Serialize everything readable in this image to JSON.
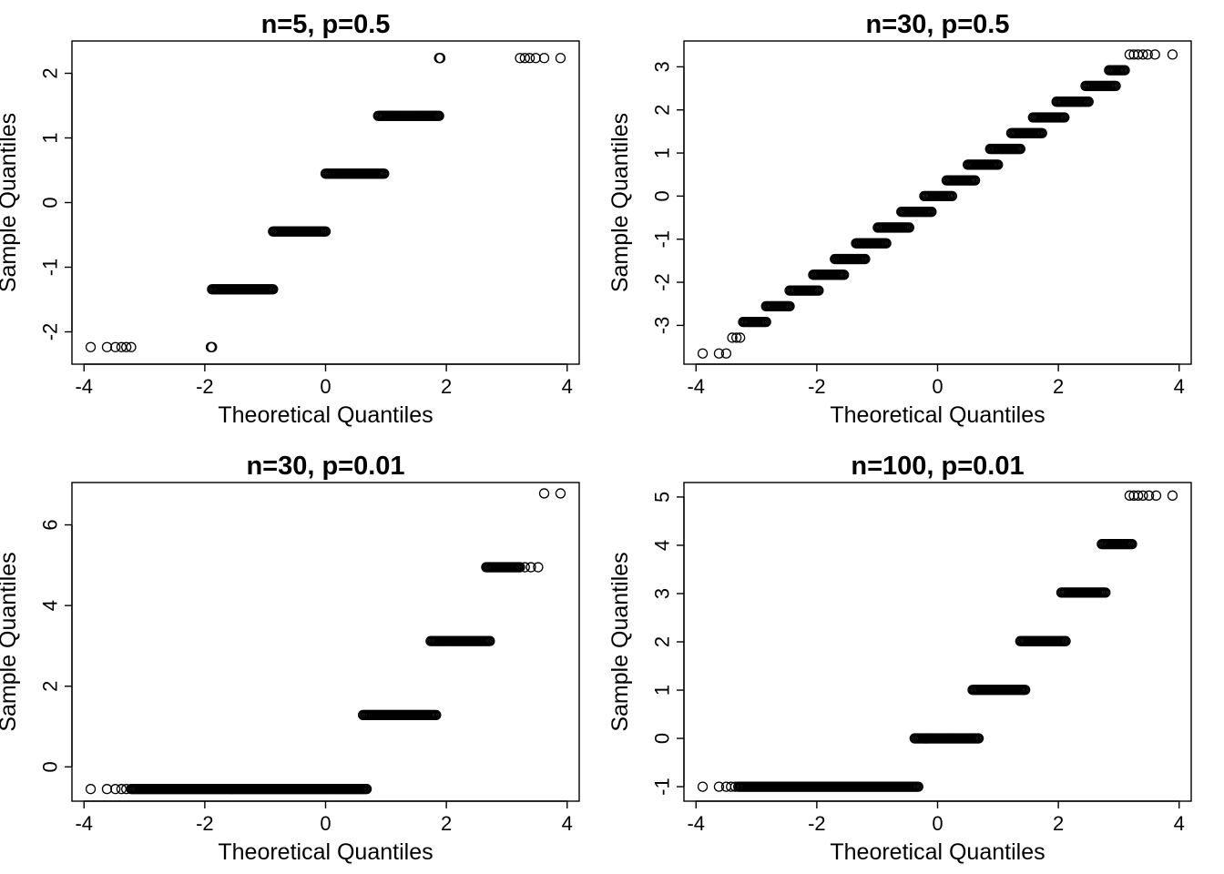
{
  "chart_data": [
    {
      "type": "scatter",
      "title": "n=5, p=0.5",
      "xlabel": "Theoretical Quantiles",
      "ylabel": "Sample Quantiles",
      "xlim": [
        -4.2,
        4.2
      ],
      "ylim": [
        -2.5,
        2.5
      ],
      "xticks": [
        -4,
        -2,
        0,
        2,
        4
      ],
      "yticks": [
        -2,
        -1,
        0,
        1,
        2
      ],
      "grid": false,
      "levels": [
        {
          "y": -2.236,
          "x_from": -1.88,
          "x_to": -1.9
        },
        {
          "y": -1.342,
          "x_from": -1.88,
          "x_to": -0.87
        },
        {
          "y": -0.447,
          "x_from": -0.87,
          "x_to": 0.0
        },
        {
          "y": 0.447,
          "x_from": 0.0,
          "x_to": 0.97
        },
        {
          "y": 1.342,
          "x_from": 0.87,
          "x_to": 1.88
        },
        {
          "y": 2.236,
          "x_from": 1.88,
          "x_to": 1.9
        }
      ],
      "tails": {
        "low_y": -2.236,
        "low_x": [
          -3.89,
          -3.62,
          -3.48,
          -3.38,
          -3.3,
          -3.22
        ],
        "high_y": 2.236,
        "high_x": [
          3.22,
          3.3,
          3.38,
          3.48,
          3.62,
          3.89
        ]
      }
    },
    {
      "type": "scatter",
      "title": "n=30, p=0.5",
      "xlabel": "Theoretical Quantiles",
      "ylabel": "Sample Quantiles",
      "xlim": [
        -4.2,
        4.2
      ],
      "ylim": [
        -3.9,
        3.6
      ],
      "xticks": [
        -4,
        -2,
        0,
        2,
        4
      ],
      "yticks": [
        -3,
        -2,
        -1,
        0,
        1,
        2,
        3
      ],
      "grid": false,
      "levels": [
        {
          "y": -2.921,
          "x_from": -3.22,
          "x_to": -2.84
        },
        {
          "y": -2.556,
          "x_from": -2.84,
          "x_to": -2.45
        },
        {
          "y": -2.191,
          "x_from": -2.45,
          "x_to": -1.97
        },
        {
          "y": -1.826,
          "x_from": -2.06,
          "x_to": -1.55
        },
        {
          "y": -1.461,
          "x_from": -1.7,
          "x_to": -1.2
        },
        {
          "y": -1.095,
          "x_from": -1.35,
          "x_to": -0.85
        },
        {
          "y": -0.73,
          "x_from": -0.99,
          "x_to": -0.47
        },
        {
          "y": -0.365,
          "x_from": -0.6,
          "x_to": -0.1
        },
        {
          "y": 0.0,
          "x_from": -0.22,
          "x_to": 0.24
        },
        {
          "y": 0.365,
          "x_from": 0.15,
          "x_to": 0.62
        },
        {
          "y": 0.73,
          "x_from": 0.5,
          "x_to": 1.0
        },
        {
          "y": 1.095,
          "x_from": 0.87,
          "x_to": 1.37
        },
        {
          "y": 1.461,
          "x_from": 1.22,
          "x_to": 1.73
        },
        {
          "y": 1.826,
          "x_from": 1.58,
          "x_to": 2.1
        },
        {
          "y": 2.191,
          "x_from": 1.97,
          "x_to": 2.5
        },
        {
          "y": 2.556,
          "x_from": 2.45,
          "x_to": 2.95
        },
        {
          "y": 2.921,
          "x_from": 2.84,
          "x_to": 3.1
        }
      ],
      "tails": {
        "low_points": [
          [
            -3.89,
            -3.651
          ],
          [
            -3.62,
            -3.651
          ],
          [
            -3.5,
            -3.651
          ],
          [
            -3.4,
            -3.286
          ],
          [
            -3.33,
            -3.286
          ],
          [
            -3.27,
            -3.286
          ]
        ],
        "high_points": [
          [
            3.18,
            3.286
          ],
          [
            3.25,
            3.286
          ],
          [
            3.32,
            3.286
          ],
          [
            3.4,
            3.286
          ],
          [
            3.48,
            3.286
          ],
          [
            3.6,
            3.286
          ],
          [
            3.89,
            3.286
          ]
        ]
      }
    },
    {
      "type": "scatter",
      "title": "n=30, p=0.01",
      "xlabel": "Theoretical Quantiles",
      "ylabel": "Sample Quantiles",
      "xlim": [
        -4.2,
        4.2
      ],
      "ylim": [
        -0.85,
        7.05
      ],
      "xticks": [
        -4,
        -2,
        0,
        2,
        4
      ],
      "yticks": [
        0,
        2,
        4,
        6
      ],
      "grid": false,
      "levels": [
        {
          "y": -0.549,
          "x_from": -3.22,
          "x_to": 0.68
        },
        {
          "y": 1.285,
          "x_from": 0.62,
          "x_to": 1.83
        },
        {
          "y": 3.12,
          "x_from": 1.74,
          "x_to": 2.72
        },
        {
          "y": 4.95,
          "x_from": 2.66,
          "x_to": 3.22
        }
      ],
      "tails": {
        "low_y": -0.549,
        "low_x": [
          -3.89,
          -3.62,
          -3.48,
          -3.38,
          -3.3
        ],
        "high_points": [
          [
            3.3,
            4.95
          ],
          [
            3.4,
            4.95
          ],
          [
            3.52,
            4.95
          ],
          [
            3.62,
            6.78
          ],
          [
            3.89,
            6.78
          ]
        ]
      }
    },
    {
      "type": "scatter",
      "title": "n=100, p=0.01",
      "xlabel": "Theoretical Quantiles",
      "ylabel": "Sample Quantiles",
      "xlim": [
        -4.2,
        4.2
      ],
      "ylim": [
        -1.3,
        5.3
      ],
      "xticks": [
        -4,
        -2,
        0,
        2,
        4
      ],
      "yticks": [
        -1,
        0,
        1,
        2,
        3,
        4,
        5
      ],
      "grid": false,
      "levels": [
        {
          "y": -1.0,
          "x_from": -3.3,
          "x_to": -0.32
        },
        {
          "y": 0.0,
          "x_from": -0.38,
          "x_to": 0.68
        },
        {
          "y": 1.005,
          "x_from": 0.58,
          "x_to": 1.45
        },
        {
          "y": 2.015,
          "x_from": 1.37,
          "x_to": 2.12
        },
        {
          "y": 3.02,
          "x_from": 2.05,
          "x_to": 2.78
        },
        {
          "y": 4.025,
          "x_from": 2.72,
          "x_to": 3.22
        }
      ],
      "tails": {
        "low_y": -1.0,
        "low_x": [
          -3.89,
          -3.62,
          -3.5,
          -3.42,
          -3.35
        ],
        "high_points": [
          [
            3.18,
            5.03
          ],
          [
            3.25,
            5.03
          ],
          [
            3.32,
            5.03
          ],
          [
            3.4,
            5.03
          ],
          [
            3.5,
            5.03
          ],
          [
            3.62,
            5.03
          ],
          [
            3.89,
            5.03
          ]
        ]
      }
    }
  ]
}
